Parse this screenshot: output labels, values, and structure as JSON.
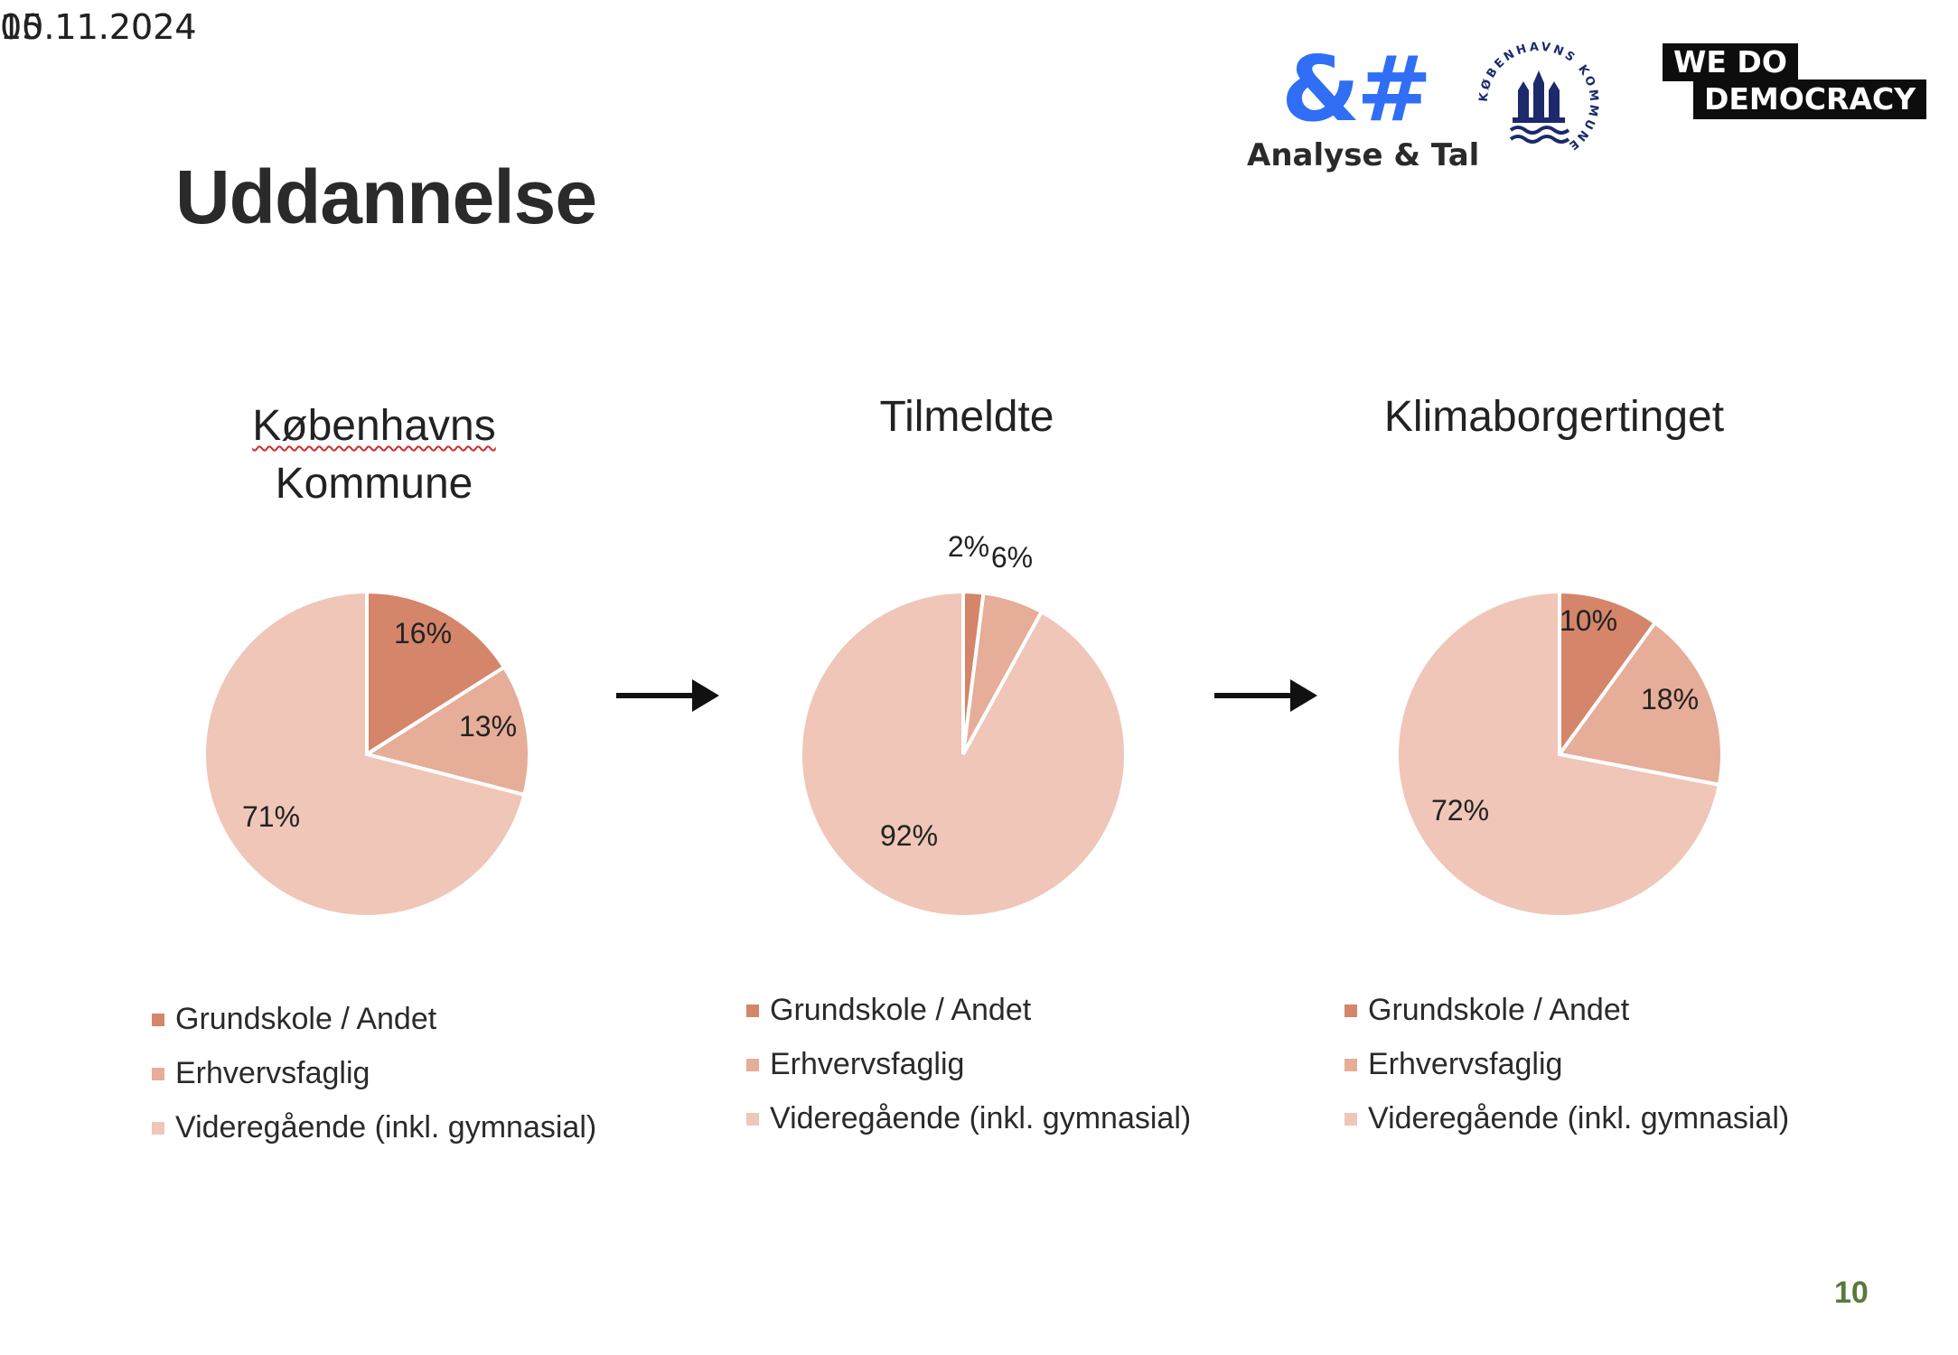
{
  "header": {
    "date_a": "05.11.2024",
    "date_b": "10.11.2024",
    "title": "Uddannelse",
    "page_number": "10"
  },
  "logos": {
    "analyse_symbol": "&#",
    "analyse_text": "Analyse & Tal",
    "kk_text": "KØBENHAVNS KOMMUNE",
    "wdd_line1": "WE  DO",
    "wdd_line2": "DEMOCRACY"
  },
  "colors": {
    "grundskole": "#d4856a",
    "erhverv": "#e6ad98",
    "videregaaende": "#efc6b8",
    "accent_blue": "#2f6ef5",
    "page_number": "#5a7a3a"
  },
  "chart_data": [
    {
      "type": "pie",
      "title_line1": "Københavns",
      "title_line2": "Kommune",
      "categories": [
        "Grundskole / Andet",
        "Erhvervsfaglig",
        "Videregående (inkl. gymnasial)"
      ],
      "values": [
        16,
        13,
        71
      ],
      "labels": [
        "16%",
        "13%",
        "71%"
      ]
    },
    {
      "type": "pie",
      "title_line1": "Tilmeldte",
      "title_line2": "",
      "categories": [
        "Grundskole / Andet",
        "Erhvervsfaglig",
        "Videregående (inkl. gymnasial)"
      ],
      "values": [
        2,
        6,
        92
      ],
      "labels": [
        "2%",
        "6%",
        "92%"
      ]
    },
    {
      "type": "pie",
      "title_line1": "Klimaborgertinget",
      "title_line2": "",
      "categories": [
        "Grundskole / Andet",
        "Erhvervsfaglig",
        "Videregående (inkl. gymnasial)"
      ],
      "values": [
        10,
        18,
        72
      ],
      "labels": [
        "10%",
        "18%",
        "72%"
      ]
    }
  ]
}
